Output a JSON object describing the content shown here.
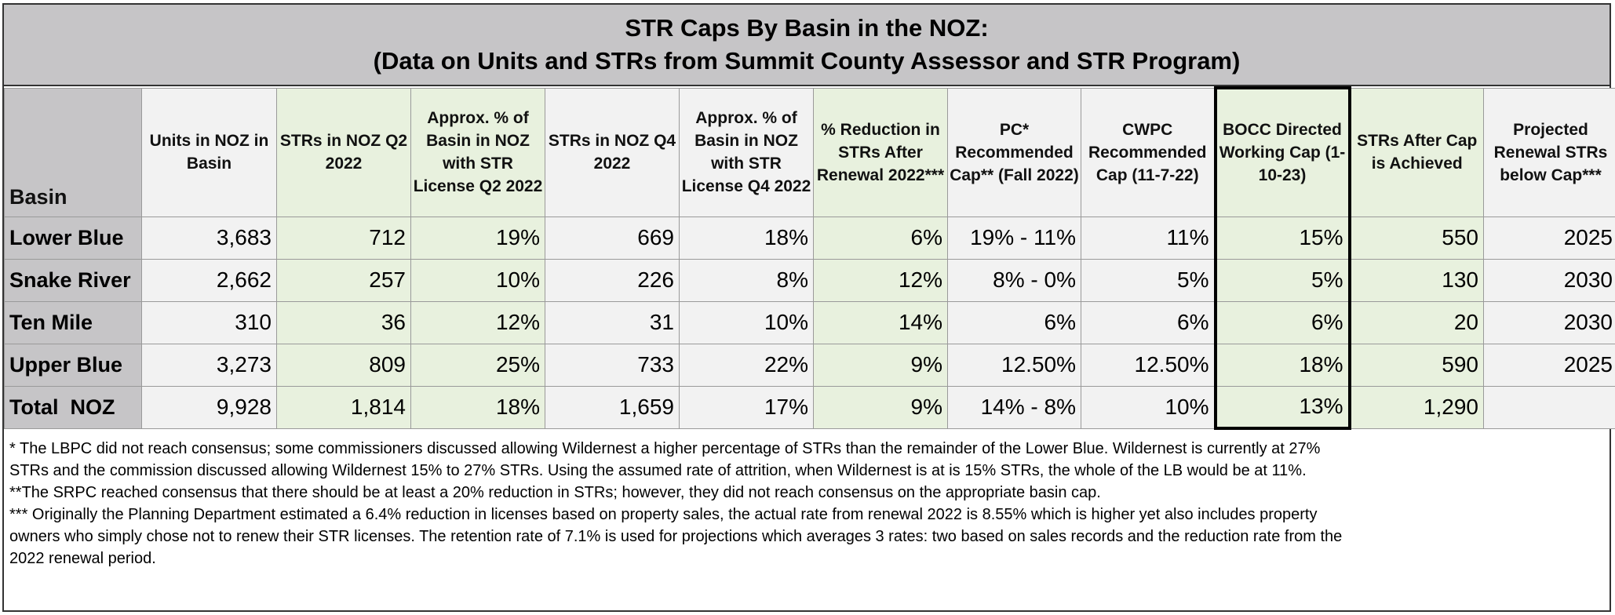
{
  "title": {
    "line1": "STR Caps By Basin in the NOZ:",
    "line2": "(Data on Units and STRs from Summit County Assessor and STR Program)"
  },
  "table": {
    "headers": [
      "Basin",
      "Units in NOZ in Basin",
      "STRs in NOZ Q2 2022",
      "Approx. % of Basin in NOZ with STR License Q2 2022",
      "STRs in NOZ Q4 2022",
      "Approx. % of Basin in NOZ with STR License Q4 2022",
      "% Reduction in STRs After Renewal 2022***",
      "PC* Recommended Cap** (Fall 2022)",
      "CWPC Recommended Cap (11-7-22)",
      "BOCC Directed Working Cap (1-10-23)",
      "STRs After Cap is Achieved",
      "Projected Renewal STRs below Cap***"
    ],
    "rows": [
      [
        "Lower Blue",
        "3,683",
        "712",
        "19%",
        "669",
        "18%",
        "6%",
        "19% - 11%",
        "11%",
        "15%",
        "550",
        "2025"
      ],
      [
        "Snake River",
        "2,662",
        "257",
        "10%",
        "226",
        "8%",
        "12%",
        "8% - 0%",
        "5%",
        "5%",
        "130",
        "2030"
      ],
      [
        "Ten Mile",
        "310",
        "36",
        "12%",
        "31",
        "10%",
        "14%",
        "6%",
        "6%",
        "6%",
        "20",
        "2030"
      ],
      [
        "Upper Blue",
        "3,273",
        "809",
        "25%",
        "733",
        "22%",
        "9%",
        "12.50%",
        "12.50%",
        "18%",
        "590",
        "2025"
      ],
      [
        "Total  NOZ",
        "9,928",
        "1,814",
        "18%",
        "1,659",
        "17%",
        "9%",
        "14% - 8%",
        "10%",
        "13%",
        "1,290",
        ""
      ]
    ]
  },
  "notes": [
    "* The LBPC did not reach consensus; some commissioners discussed allowing Wildernest a higher percentage of STRs than the remainder of the Lower Blue. Wildernest is currently at 27% STRs and the commission discussed allowing Wildernest 15% to 27% STRs. Using the assumed rate of attrition, when Wildernest is at is 15% STRs, the whole of the LB would be at 11%.",
    "**The SRPC reached consensus that there should be at least a 20% reduction in STRs; however, they did not reach consensus on the appropriate basin cap.",
    "*** Originally the Planning Department estimated a 6.4% reduction in licenses based on property sales, the actual rate from renewal 2022 is 8.55% which is higher yet also includes property owners who simply chose not to renew their STR licenses. The retention rate of 7.1% is used for projections which averages 3 rates: two based on sales records and the reduction rate from the 2022 renewal period."
  ],
  "colors": {
    "header_gray": "#c6c5c7",
    "cell_white": "#f2f2f2",
    "cell_green": "#e8f1de",
    "bocc_border": "#000000"
  }
}
